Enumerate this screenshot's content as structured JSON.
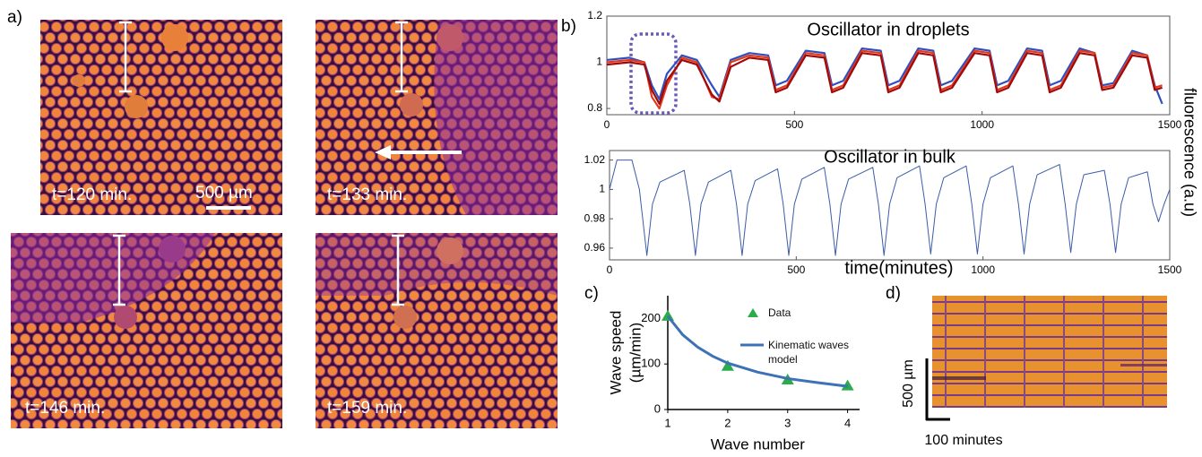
{
  "panel_labels": [
    "a)",
    "b)",
    "c)",
    "d)"
  ],
  "images": [
    {
      "label": "t=120 min."
    },
    {
      "label": "t=133 min."
    },
    {
      "label": "t=146 min."
    },
    {
      "label": "t=159 min."
    }
  ],
  "scale_bar": "500 µm",
  "shared_ylabel": "fluorescence (a.u)",
  "kymograph": {
    "ylabel": "500 µm",
    "xlabel": "100 minutes"
  },
  "chart_data": [
    {
      "type": "line",
      "title": "Oscillator in droplets",
      "x": [
        0,
        60,
        100,
        120,
        140,
        160,
        200,
        240,
        280,
        300,
        330,
        380,
        430,
        450,
        480,
        530,
        580,
        600,
        630,
        680,
        730,
        750,
        780,
        830,
        870,
        890,
        920,
        980,
        1020,
        1040,
        1070,
        1120,
        1160,
        1180,
        1210,
        1260,
        1300,
        1320,
        1350,
        1400,
        1440,
        1460,
        1480
      ],
      "series": [
        {
          "color": "#2f4fc0",
          "values": [
            1.01,
            1.02,
            1.0,
            0.9,
            0.84,
            0.95,
            1.03,
            1.01,
            0.9,
            0.85,
            1.01,
            1.04,
            1.03,
            0.9,
            0.92,
            1.05,
            1.04,
            0.9,
            0.92,
            1.06,
            1.05,
            0.9,
            0.92,
            1.06,
            1.05,
            0.9,
            0.92,
            1.06,
            1.05,
            0.9,
            0.92,
            1.06,
            1.05,
            0.9,
            0.92,
            1.06,
            1.04,
            0.9,
            0.91,
            1.05,
            1.03,
            0.9,
            0.82
          ]
        },
        {
          "color": "#e23a1a",
          "values": [
            1.0,
            1.01,
            1.0,
            0.85,
            0.8,
            0.9,
            1.02,
            1.0,
            0.85,
            0.84,
            1.0,
            1.03,
            1.02,
            0.88,
            0.9,
            1.04,
            1.03,
            0.88,
            0.9,
            1.05,
            1.04,
            0.88,
            0.9,
            1.05,
            1.04,
            0.88,
            0.9,
            1.05,
            1.04,
            0.88,
            0.9,
            1.05,
            1.04,
            0.88,
            0.9,
            1.05,
            1.04,
            0.89,
            0.9,
            1.04,
            1.03,
            0.89,
            0.9
          ]
        },
        {
          "color": "#a00a0a",
          "values": [
            0.99,
            1.0,
            0.99,
            0.88,
            0.82,
            0.92,
            1.01,
            0.99,
            0.86,
            0.83,
            0.98,
            1.02,
            1.01,
            0.87,
            0.89,
            1.03,
            1.02,
            0.87,
            0.89,
            1.04,
            1.03,
            0.87,
            0.89,
            1.04,
            1.03,
            0.87,
            0.89,
            1.04,
            1.03,
            0.87,
            0.89,
            1.04,
            1.03,
            0.87,
            0.89,
            1.04,
            1.03,
            0.88,
            0.89,
            1.03,
            1.02,
            0.88,
            0.89
          ]
        }
      ],
      "xlim": [
        0,
        1500
      ],
      "xticks": [
        0,
        500,
        1000,
        1500
      ],
      "ylim": [
        0.773,
        1.2
      ],
      "yticks": [
        0.8,
        1,
        1.2
      ]
    },
    {
      "type": "line",
      "title": "Oscillator in bulk",
      "xlabel": "time(minutes)",
      "x": [
        0,
        20,
        60,
        80,
        100,
        115,
        135,
        200,
        215,
        230,
        245,
        265,
        325,
        340,
        355,
        370,
        390,
        450,
        465,
        480,
        495,
        515,
        575,
        590,
        605,
        620,
        640,
        705,
        720,
        735,
        750,
        770,
        830,
        845,
        860,
        875,
        895,
        955,
        970,
        985,
        1000,
        1020,
        1080,
        1095,
        1110,
        1125,
        1145,
        1205,
        1220,
        1235,
        1250,
        1270,
        1325,
        1340,
        1355,
        1370,
        1390,
        1440,
        1455,
        1470,
        1485,
        1500
      ],
      "series": [
        {
          "color": "#3b5ca8",
          "values": [
            1.0,
            1.02,
            1.02,
            1.0,
            0.955,
            0.99,
            1.005,
            1.013,
            0.99,
            0.955,
            0.99,
            1.005,
            1.013,
            0.99,
            0.955,
            0.99,
            1.006,
            1.014,
            0.99,
            0.955,
            0.99,
            1.007,
            1.015,
            0.99,
            0.955,
            0.99,
            1.007,
            1.015,
            0.99,
            0.955,
            0.99,
            1.008,
            1.016,
            0.99,
            0.956,
            0.99,
            1.008,
            1.016,
            0.99,
            0.956,
            0.99,
            1.008,
            1.016,
            0.99,
            0.956,
            0.99,
            1.01,
            1.017,
            0.99,
            0.957,
            0.99,
            1.01,
            1.013,
            0.99,
            0.957,
            0.99,
            1.008,
            1.012,
            0.99,
            0.978,
            0.99,
            1.0
          ]
        }
      ],
      "xlim": [
        0,
        1500
      ],
      "xticks": [
        0,
        500,
        1000,
        1500
      ],
      "ylim": [
        0.952,
        1.0265
      ],
      "yticks": [
        0.96,
        0.98,
        1,
        1.02
      ]
    },
    {
      "type": "scatter",
      "xlabel": "Wave number",
      "ylabel": [
        "Wave speed",
        "(µm/min)"
      ],
      "series": [
        {
          "name": "Data",
          "marker": "triangle",
          "color": "#2aac4a",
          "x": [
            1,
            2,
            3,
            4
          ],
          "values": [
            205,
            95,
            65,
            52
          ]
        },
        {
          "name": "Kinematic waves model",
          "marker": "line",
          "color": "#3d72b4",
          "x": [
            1,
            1.25,
            1.5,
            1.75,
            2,
            2.5,
            3,
            3.5,
            4
          ],
          "values": [
            205,
            164,
            137,
            117,
            102,
            82,
            68,
            59,
            51
          ]
        }
      ],
      "xlim": [
        1,
        4.2
      ],
      "xticks": [
        1,
        2,
        3,
        4
      ],
      "ylim": [
        0,
        250
      ],
      "yticks": [
        0,
        100,
        200
      ]
    }
  ]
}
